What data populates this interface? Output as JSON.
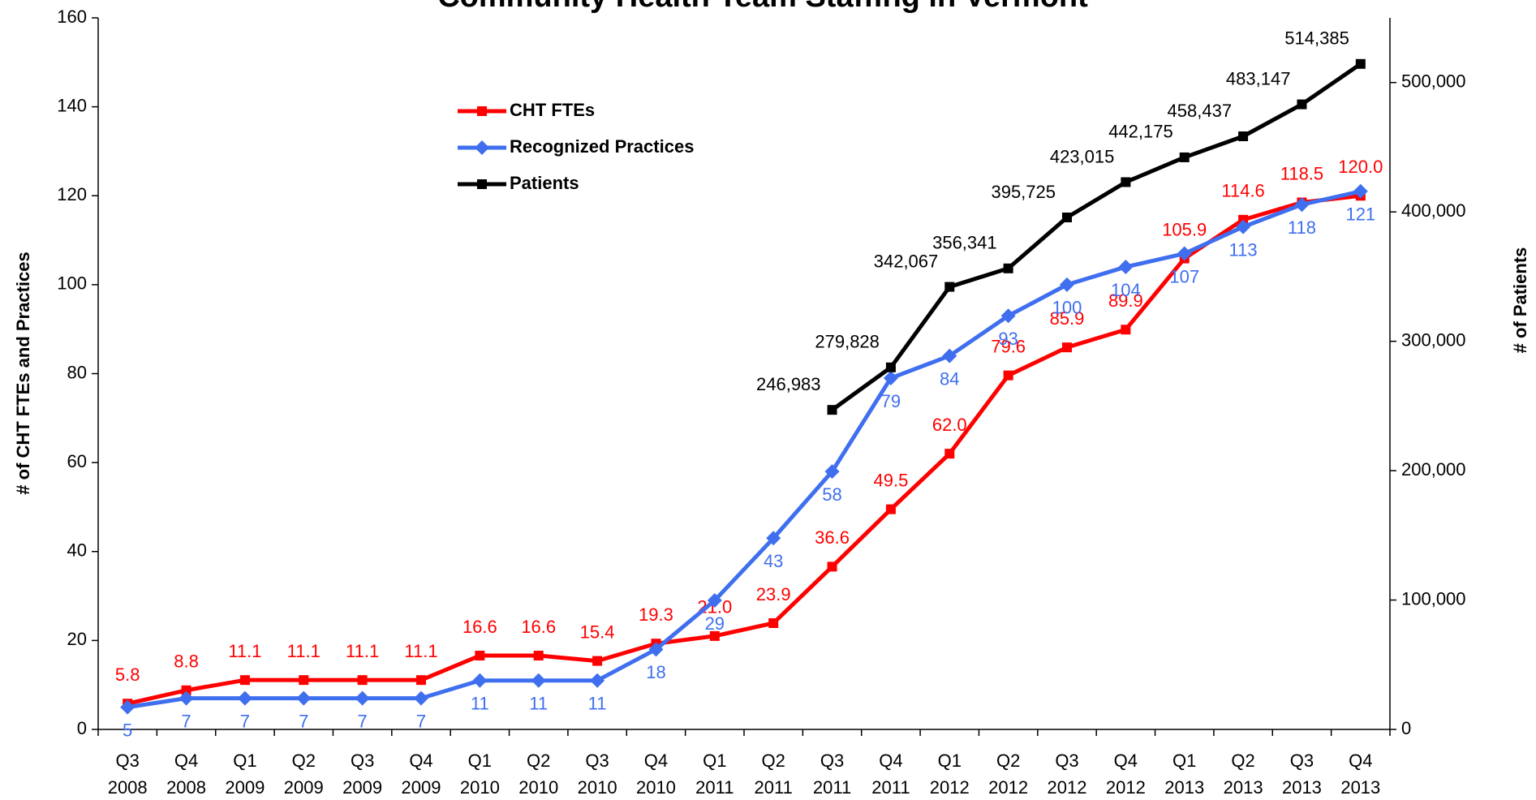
{
  "chart_data": {
    "type": "line",
    "title": "Community Health Team Staffing in Vermont",
    "y_label": "# of CHT FTEs and Practices",
    "y2_label": "# of Patients",
    "categories": [
      [
        "Q3",
        "2008"
      ],
      [
        "Q4",
        "2008"
      ],
      [
        "Q1",
        "2009"
      ],
      [
        "Q2",
        "2009"
      ],
      [
        "Q3",
        "2009"
      ],
      [
        "Q4",
        "2009"
      ],
      [
        "Q1",
        "2010"
      ],
      [
        "Q2",
        "2010"
      ],
      [
        "Q3",
        "2010"
      ],
      [
        "Q4",
        "2010"
      ],
      [
        "Q1",
        "2011"
      ],
      [
        "Q2",
        "2011"
      ],
      [
        "Q3",
        "2011"
      ],
      [
        "Q4",
        "2011"
      ],
      [
        "Q1",
        "2012"
      ],
      [
        "Q2",
        "2012"
      ],
      [
        "Q3",
        "2012"
      ],
      [
        "Q4",
        "2012"
      ],
      [
        "Q1",
        "2013"
      ],
      [
        "Q2",
        "2013"
      ],
      [
        "Q3",
        "2013"
      ],
      [
        "Q4",
        "2013"
      ]
    ],
    "series": [
      {
        "name": "CHT FTEs",
        "color": "#ff0000",
        "marker": "square",
        "values": [
          5.8,
          8.8,
          11.1,
          11.1,
          11.1,
          11.1,
          16.6,
          16.6,
          15.4,
          19.3,
          21.0,
          23.9,
          36.6,
          49.5,
          62.0,
          79.6,
          85.9,
          89.9,
          105.9,
          114.6,
          118.5,
          120.0
        ],
        "value_labels": [
          "5.8",
          "8.8",
          "11.1",
          "11.1",
          "11.1",
          "11.1",
          "16.6",
          "16.6",
          "15.4",
          "19.3",
          "21.0",
          "23.9",
          "36.6",
          "49.5",
          "62.0",
          "79.6",
          "85.9",
          "89.9",
          "105.9",
          "114.6",
          "118.5",
          "120.0"
        ]
      },
      {
        "name": "Recognized Practices",
        "color": "#3f6fef",
        "marker": "diamond",
        "values": [
          5,
          7,
          7,
          7,
          7,
          7,
          11,
          11,
          11,
          18,
          29,
          43,
          58,
          79,
          84,
          93,
          100,
          104,
          107,
          113,
          118,
          121
        ]
      },
      {
        "name": "Patients",
        "color": "#000000",
        "marker": "square",
        "axis": "y2",
        "values": [
          null,
          null,
          null,
          null,
          null,
          null,
          null,
          null,
          null,
          null,
          null,
          null,
          246983,
          279828,
          342067,
          356341,
          395725,
          423015,
          442175,
          458437,
          483147,
          514385
        ],
        "value_labels": [
          null,
          null,
          null,
          null,
          null,
          null,
          null,
          null,
          null,
          null,
          null,
          null,
          "246,983",
          "279,828",
          "342,067",
          "356,341",
          "395,725",
          "423,015",
          "442,175",
          "458,437",
          "483,147",
          "514,385"
        ]
      }
    ],
    "ylim": [
      0,
      160
    ],
    "yticks": [
      0,
      20,
      40,
      60,
      80,
      100,
      120,
      140,
      160
    ],
    "y2lim": [
      0,
      550000
    ],
    "y2ticks": [
      0,
      {
        "value": 100000,
        "label": "100,000"
      },
      {
        "value": 200000,
        "label": "200,000"
      },
      {
        "value": 300000,
        "label": "300,000"
      },
      {
        "value": 400000,
        "label": "400,000"
      },
      {
        "value": 500000,
        "label": "500,000"
      }
    ],
    "grid": false
  }
}
